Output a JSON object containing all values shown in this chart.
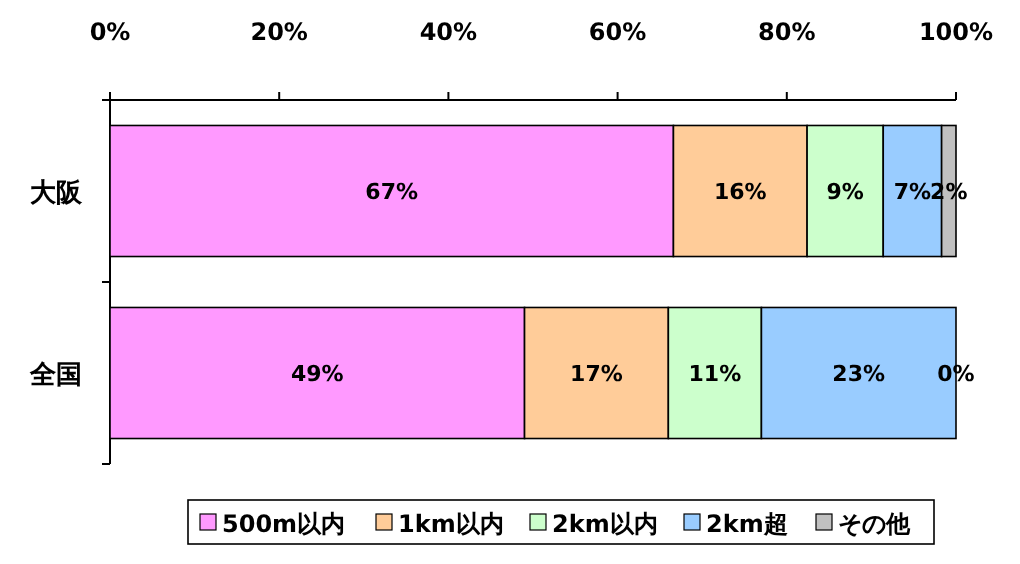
{
  "chart_data": {
    "type": "bar",
    "orientation": "horizontal",
    "stacked": true,
    "legend": "bottom",
    "categories": [
      "大阪",
      "全国"
    ],
    "xlim": [
      0,
      100
    ],
    "xticks": [
      {
        "value": 0,
        "label": "0%"
      },
      {
        "value": 20,
        "label": "20%"
      },
      {
        "value": 40,
        "label": "40%"
      },
      {
        "value": 60,
        "label": "60%"
      },
      {
        "value": 80,
        "label": "80%"
      },
      {
        "value": 100,
        "label": "100%"
      }
    ],
    "series": [
      {
        "name": "500m以内",
        "color": "#ff99ff",
        "values": [
          66.6,
          49
        ],
        "value_labels": [
          "67%",
          "49%"
        ]
      },
      {
        "name": "1km以内",
        "color": "#ffcc99",
        "values": [
          15.8,
          17
        ],
        "value_labels": [
          "16%",
          "17%"
        ]
      },
      {
        "name": "2km以内",
        "color": "#ccffcc",
        "values": [
          9.0,
          11
        ],
        "value_labels": [
          "9%",
          "11%"
        ]
      },
      {
        "name": "2km超",
        "color": "#99ccff",
        "values": [
          6.9,
          23
        ],
        "value_labels": [
          "7%",
          "23%"
        ]
      },
      {
        "name": "その他",
        "color": "#c0c0c0",
        "values": [
          1.7,
          0
        ],
        "value_labels": [
          "2%",
          "0%"
        ]
      }
    ]
  }
}
